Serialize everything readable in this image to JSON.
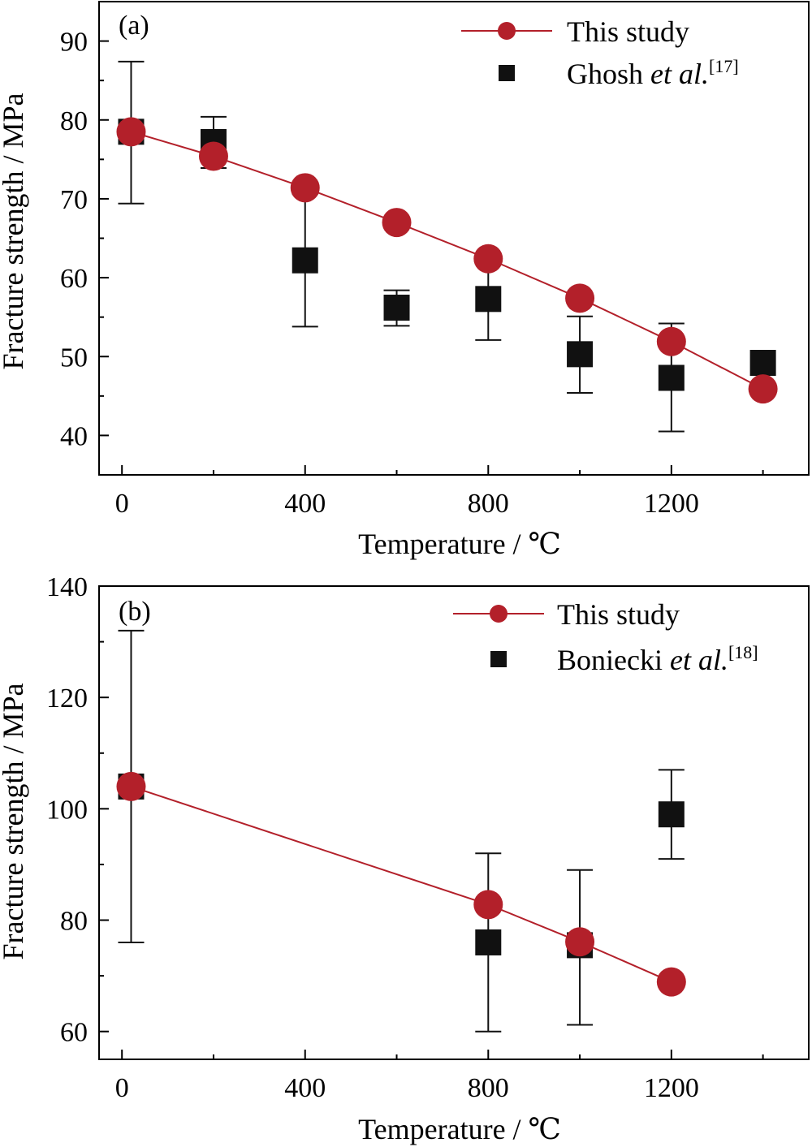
{
  "chart_data": [
    {
      "type": "scatter",
      "panel_label": "(a)",
      "xlabel": "Temperature / ℃",
      "ylabel": "Fracture strength / MPa",
      "xlim": [
        -50,
        1500
      ],
      "ylim": [
        35,
        95
      ],
      "xticks": [
        0,
        400,
        800,
        1200
      ],
      "xticks_minor": [
        200,
        600,
        1000,
        1400
      ],
      "yticks": [
        40,
        50,
        60,
        70,
        80,
        90
      ],
      "legend_position": "top-right",
      "series": [
        {
          "name": "Ghosh",
          "name_italic": "et al.",
          "name_sup": "[17]",
          "marker": "square",
          "line": false,
          "color": "#111111",
          "x": [
            20,
            200,
            400,
            600,
            800,
            1000,
            1200,
            1400
          ],
          "y": [
            78.5,
            77.2,
            62.2,
            56.2,
            57.3,
            50.3,
            47.3,
            49.2
          ],
          "err_low": [
            69.4,
            73.9,
            53.8,
            53.9,
            52.1,
            45.4,
            40.5,
            null
          ],
          "err_high": [
            87.4,
            80.4,
            70.6,
            58.4,
            62.5,
            55.1,
            54.2,
            null
          ]
        },
        {
          "name": "This study",
          "marker": "circle",
          "line": true,
          "color": "#b3202a",
          "x": [
            20,
            200,
            400,
            600,
            800,
            1000,
            1200,
            1400
          ],
          "y": [
            78.5,
            75.4,
            71.4,
            67.0,
            62.4,
            57.4,
            51.9,
            45.9
          ]
        }
      ]
    },
    {
      "type": "scatter",
      "panel_label": "(b)",
      "xlabel": "Temperature / ℃",
      "ylabel": "Fracture strength / MPa",
      "xlim": [
        -50,
        1500
      ],
      "ylim": [
        55,
        140
      ],
      "xticks": [
        0,
        400,
        800,
        1200
      ],
      "xticks_minor": [
        200,
        600,
        1000,
        1400
      ],
      "yticks": [
        60,
        80,
        100,
        120,
        140
      ],
      "legend_position": "top-right",
      "series": [
        {
          "name": "Boniecki",
          "name_italic": "et al.",
          "name_sup": "[18]",
          "marker": "square",
          "line": false,
          "color": "#111111",
          "x": [
            20,
            800,
            1000,
            1200
          ],
          "y": [
            104,
            76,
            75.5,
            99
          ],
          "err_low": [
            76,
            60,
            61.2,
            91
          ],
          "err_high": [
            132,
            92,
            89,
            107
          ]
        },
        {
          "name": "This study",
          "marker": "circle",
          "line": true,
          "color": "#b3202a",
          "x": [
            20,
            800,
            1000,
            1200
          ],
          "y": [
            104,
            82.8,
            76.1,
            68.9
          ]
        }
      ]
    }
  ]
}
